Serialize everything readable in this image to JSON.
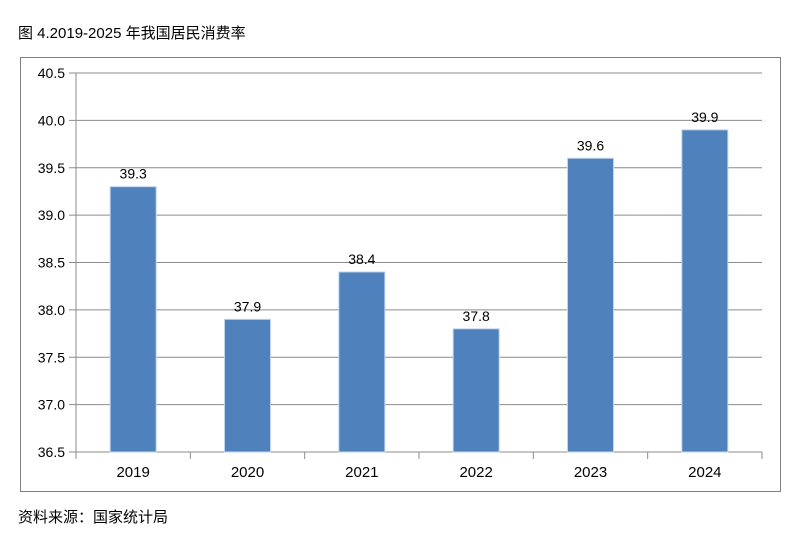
{
  "header": {
    "title": "图 4.2019-2025 年我国居民消费率"
  },
  "footer": {
    "source": "资料来源：国家统计局"
  },
  "chart_data": {
    "type": "bar",
    "title": "图 4.2019-2025 年我国居民消费率",
    "categories": [
      "2019",
      "2020",
      "2021",
      "2022",
      "2023",
      "2024"
    ],
    "values": [
      39.3,
      37.9,
      38.4,
      37.8,
      39.6,
      39.9
    ],
    "data_labels": [
      "39.3",
      "37.9",
      "38.4",
      "37.8",
      "39.6",
      "39.9"
    ],
    "xlabel": "",
    "ylabel": "",
    "ylim": [
      36.5,
      40.5
    ],
    "ytick_step": 0.5,
    "ytick_labels": [
      "36.5",
      "37.0",
      "37.5",
      "38.0",
      "38.5",
      "39.0",
      "39.5",
      "40.0",
      "40.5"
    ],
    "grid": true,
    "legend": false,
    "colors": {
      "bar_fill": "#4F81BD",
      "bar_border": "#BFD5EB",
      "gridline": "#8C8C8C",
      "axis": "#8C8C8C",
      "frame_border": "#808080",
      "text": "#000000"
    }
  }
}
